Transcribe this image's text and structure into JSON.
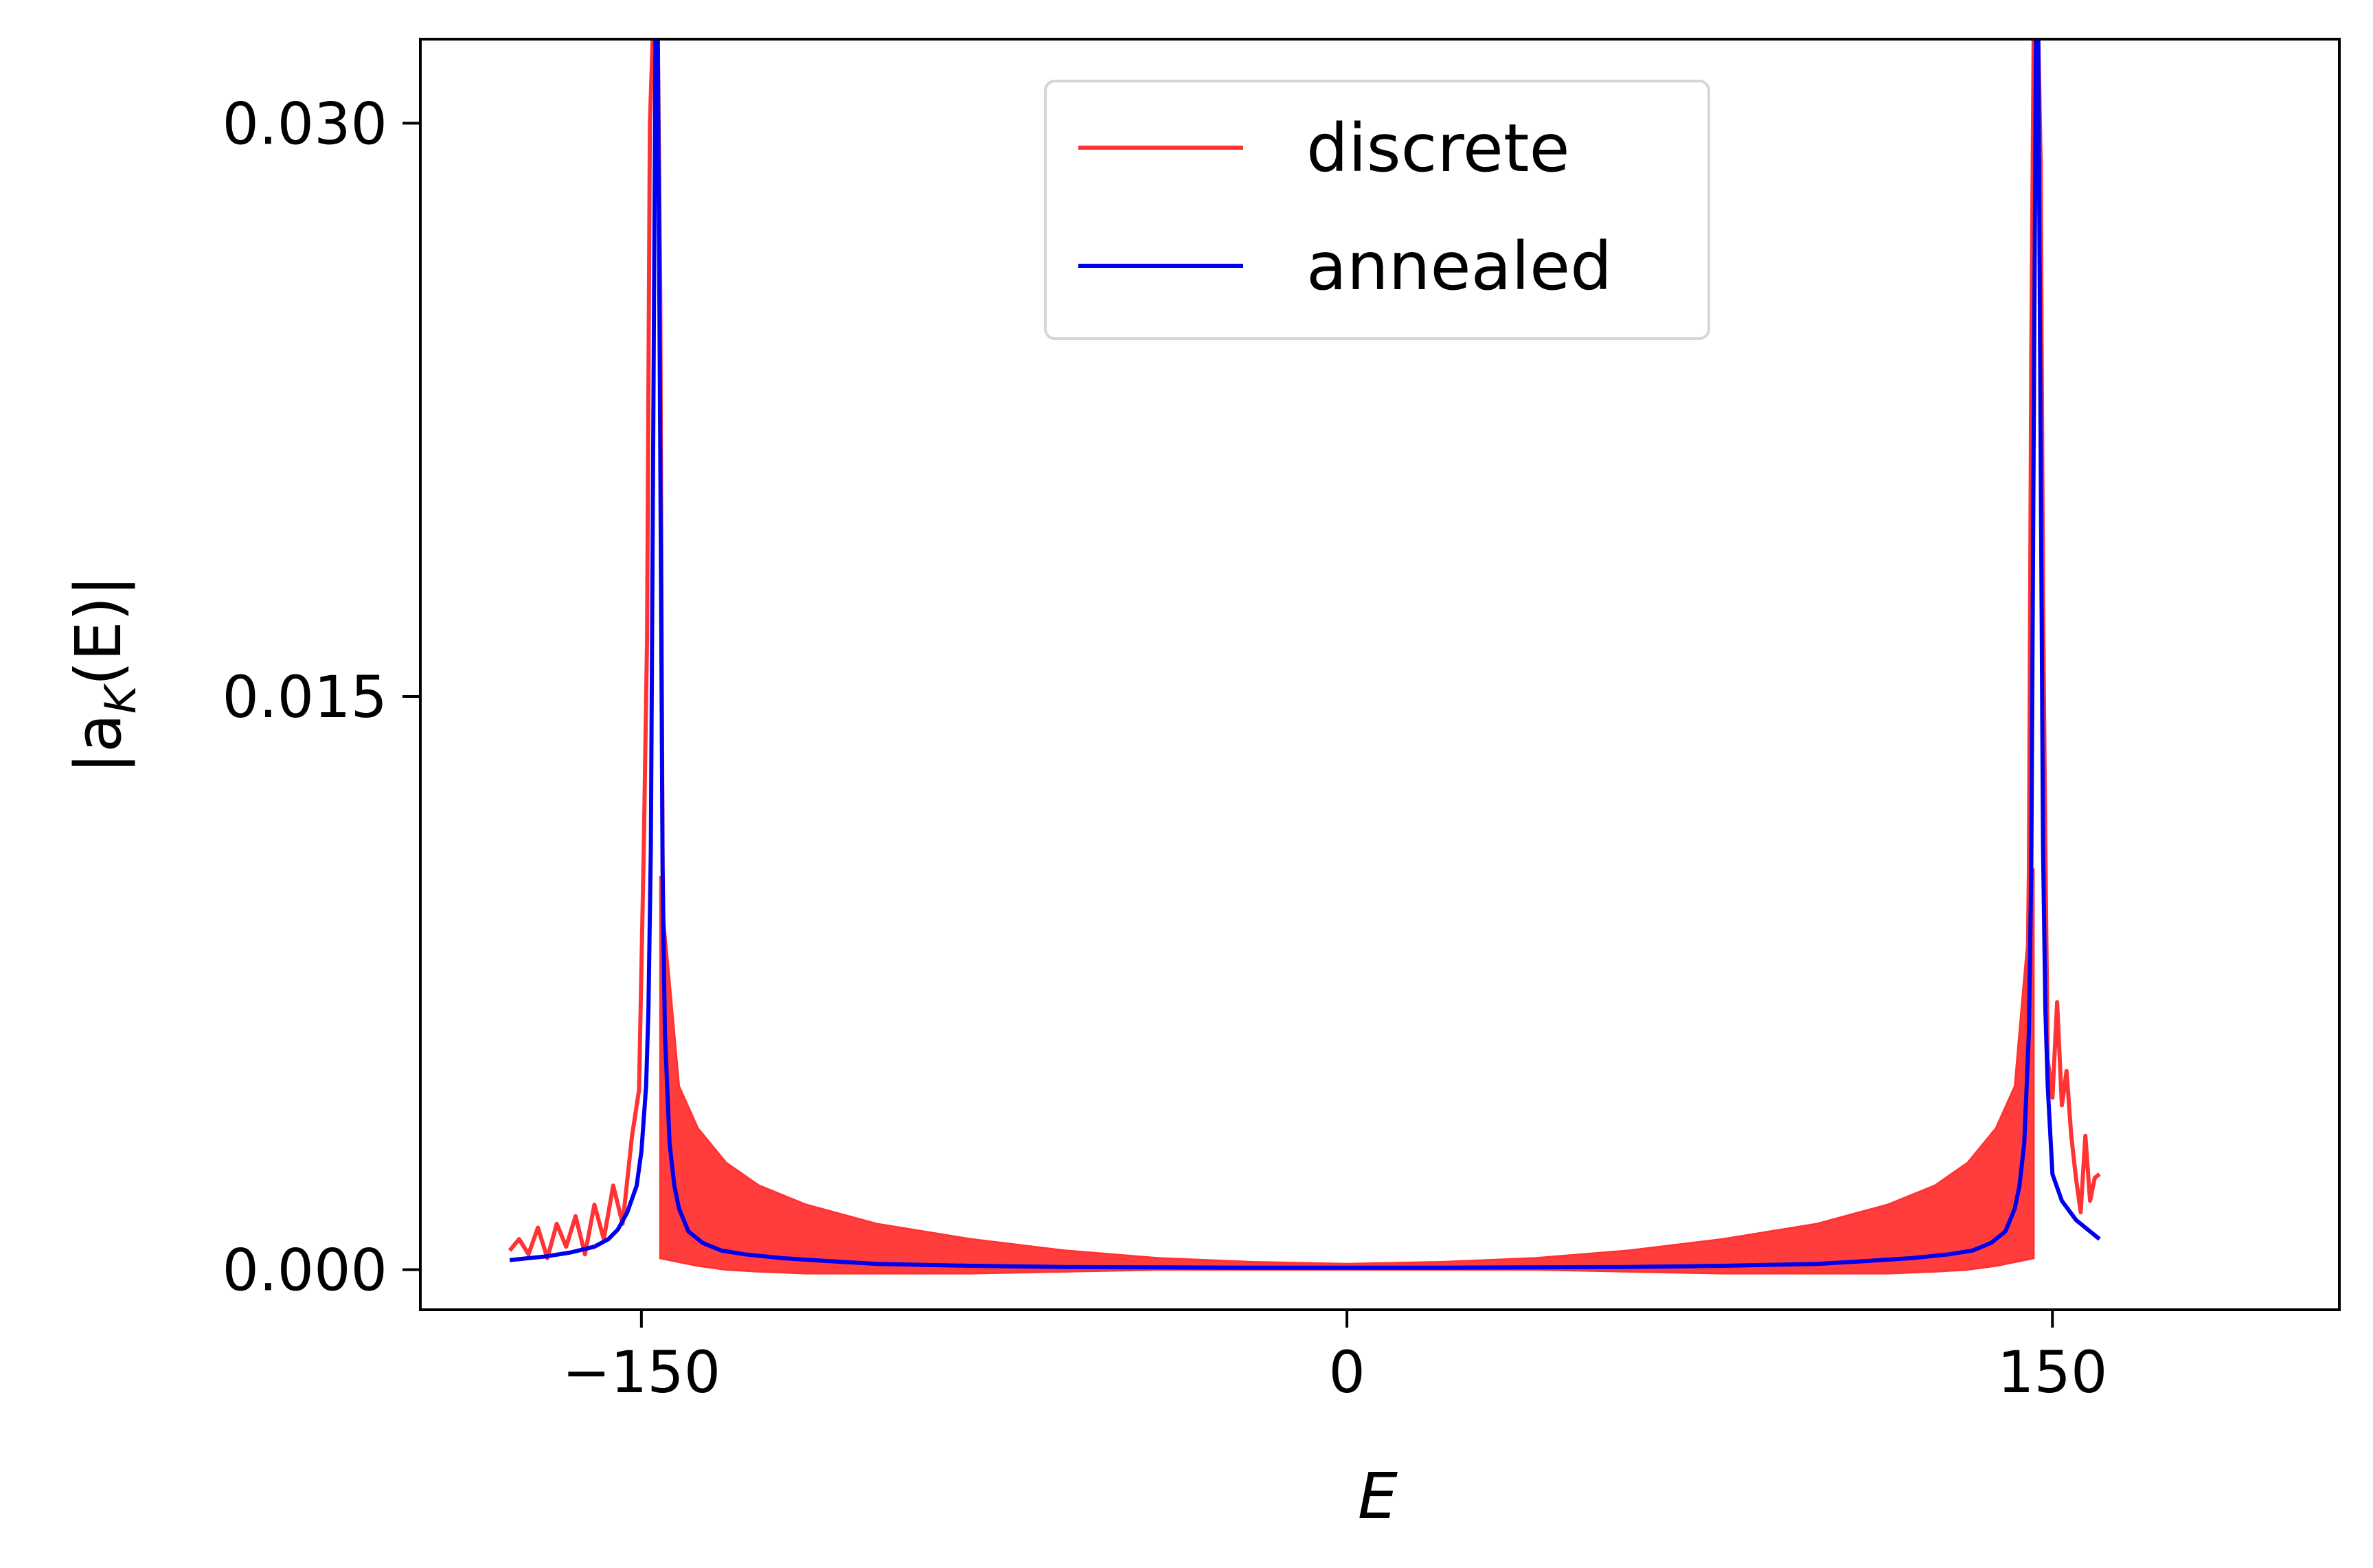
{
  "chart_data": {
    "type": "line",
    "xlabel": "E",
    "ylabel_main": "|a",
    "ylabel_sub": "K",
    "ylabel_tail": "(E)|",
    "xlim": [
      -197,
      211
    ],
    "ylim": [
      -0.00105,
      0.0322
    ],
    "x_ticks": [
      {
        "value": -150,
        "label": "−150"
      },
      {
        "value": 0,
        "label": "0"
      },
      {
        "value": 150,
        "label": "150"
      }
    ],
    "y_ticks": [
      {
        "value": 0.0,
        "label": "0.000"
      },
      {
        "value": 0.015,
        "label": "0.015"
      },
      {
        "value": 0.03,
        "label": "0.030"
      }
    ],
    "grid": false,
    "legend_position": "top-center",
    "series": [
      {
        "name": "discrete",
        "color": "#ff3333",
        "style": "line",
        "band": {
          "x": [
            -146,
            -142,
            -138,
            -132,
            -125,
            -115,
            -100,
            -80,
            -60,
            -40,
            -20,
            0,
            20,
            40,
            60,
            80,
            100,
            115,
            125,
            132,
            138,
            142,
            146
          ],
          "upper": [
            0.0103,
            0.0048,
            0.0037,
            0.0028,
            0.0022,
            0.0017,
            0.0012,
            0.0008,
            0.0005,
            0.0003,
            0.0002,
            0.00015,
            0.0002,
            0.0003,
            0.0005,
            0.0008,
            0.0012,
            0.0017,
            0.0022,
            0.0028,
            0.0037,
            0.0048,
            0.0105
          ],
          "lower": [
            0.0003,
            0.0002,
            0.0001,
            0.0,
            -5e-05,
            -0.0001,
            -0.0001,
            -0.0001,
            -5e-05,
            0.0,
            0.0,
            0.0,
            0.0,
            0.0,
            -5e-05,
            -0.0001,
            -0.0001,
            -0.0001,
            -5e-05,
            0.0,
            0.0001,
            0.0002,
            0.0003
          ]
        },
        "x": [
          -178,
          -176,
          -174,
          -172,
          -170,
          -168,
          -166,
          -164,
          -162,
          -160,
          -158,
          -156,
          -154,
          -152,
          -150.5,
          -149.5,
          -148.8,
          -148.2,
          -147.6,
          -147,
          -146.5,
          -146,
          -145.5,
          -145
        ],
        "y": [
          0.0005,
          0.0008,
          0.0004,
          0.0011,
          0.0003,
          0.0012,
          0.0006,
          0.0014,
          0.0004,
          0.0017,
          0.0008,
          0.0022,
          0.0012,
          0.0035,
          0.0047,
          0.011,
          0.0165,
          0.03,
          0.0322,
          0.0322,
          0.0322,
          0.0255,
          0.0105,
          0.005
        ],
        "x_right": [
          144.5,
          145,
          145.5,
          146,
          146.5,
          147,
          147.5,
          148,
          148.5,
          149,
          150,
          151,
          152,
          153,
          154,
          155,
          156,
          157,
          158,
          159,
          160
        ],
        "y_right": [
          0.005,
          0.0105,
          0.024,
          0.0322,
          0.0322,
          0.0322,
          0.029,
          0.0175,
          0.011,
          0.0055,
          0.0045,
          0.007,
          0.0043,
          0.0052,
          0.0035,
          0.0024,
          0.0015,
          0.0035,
          0.0018,
          0.0024,
          0.0025
        ]
      },
      {
        "name": "annealed",
        "color": "#0000ee",
        "style": "line",
        "x": [
          -178,
          -170,
          -165,
          -160,
          -157,
          -155,
          -153,
          -151,
          -150,
          -149,
          -148.5,
          -148,
          -147.5,
          -147,
          -146.5,
          -146,
          -145.5,
          -145,
          -144,
          -143,
          -142,
          -140,
          -137,
          -133,
          -128,
          -120,
          -110,
          -100,
          -80,
          -60,
          -40,
          -20,
          0,
          20,
          40,
          60,
          80,
          100,
          110,
          120,
          128,
          133,
          137,
          140,
          142,
          143,
          144,
          145,
          145.5,
          146,
          146.5,
          147,
          147.5,
          148,
          148.5,
          149,
          150,
          152,
          155,
          157,
          160
        ],
        "y": [
          0.00025,
          0.00035,
          0.00045,
          0.0006,
          0.0008,
          0.00105,
          0.0015,
          0.0022,
          0.0031,
          0.0048,
          0.0068,
          0.011,
          0.0215,
          0.0322,
          0.0322,
          0.0215,
          0.0105,
          0.0062,
          0.0033,
          0.0022,
          0.0016,
          0.001,
          0.0007,
          0.0005,
          0.0004,
          0.0003,
          0.00022,
          0.00015,
          0.0001,
          7e-05,
          6e-05,
          5e-05,
          5e-05,
          5e-05,
          6e-05,
          7e-05,
          0.0001,
          0.00015,
          0.00022,
          0.0003,
          0.0004,
          0.0005,
          0.0007,
          0.001,
          0.0016,
          0.0022,
          0.0033,
          0.0062,
          0.0105,
          0.0215,
          0.0322,
          0.0322,
          0.0215,
          0.011,
          0.0068,
          0.0048,
          0.0025,
          0.0018,
          0.0013,
          0.0011,
          0.0008
        ]
      }
    ]
  }
}
